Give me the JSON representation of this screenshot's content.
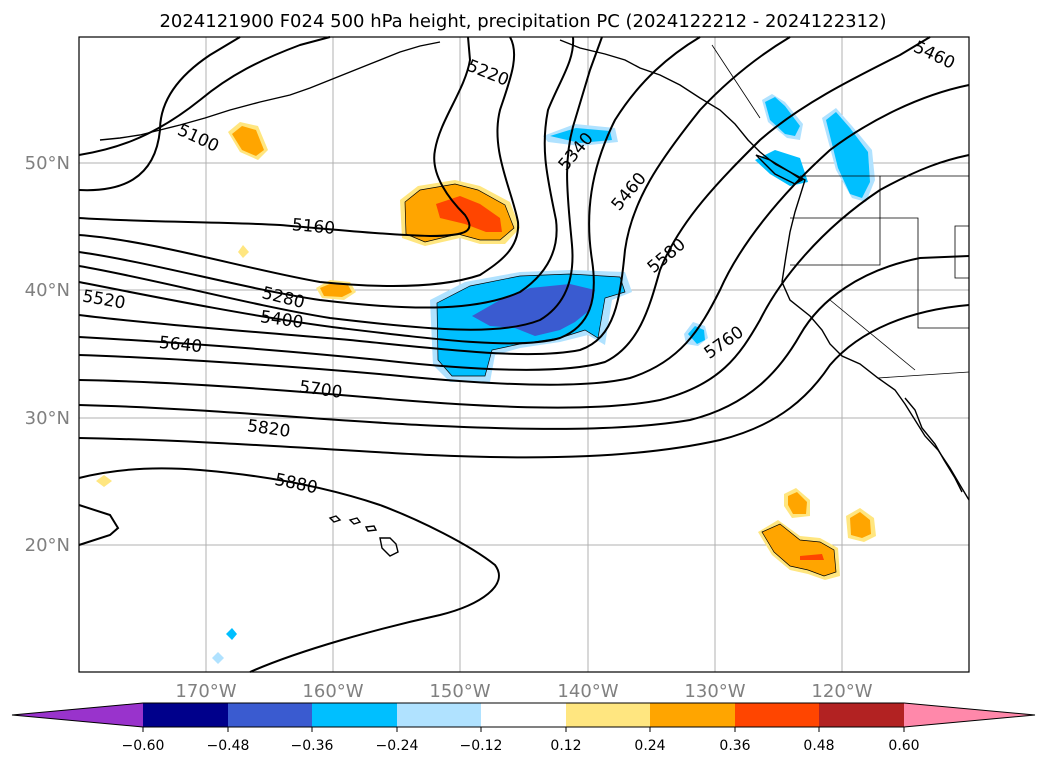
{
  "title": "2024121900 F024 500 hPa height, precipitation PC (2024122212 - 2024122312)",
  "lat_labels": [
    "50°N",
    "40°N",
    "30°N",
    "20°N"
  ],
  "lon_labels": [
    "170°W",
    "160°W",
    "150°W",
    "140°W",
    "130°W",
    "120°W"
  ],
  "contour_labels": [
    "5460",
    "5220",
    "5100",
    "5340",
    "5460",
    "5160",
    "5580",
    "5280",
    "5520",
    "5400",
    "5760",
    "5640",
    "5700",
    "5820",
    "5880"
  ],
  "colorbar": {
    "ticks": [
      "−0.60",
      "−0.48",
      "−0.36",
      "−0.24",
      "−0.12",
      "0.12",
      "0.24",
      "0.36",
      "0.48",
      "0.60"
    ],
    "colors": [
      "#9933cc",
      "#00008b",
      "#3a5bd0",
      "#00bfff",
      "#b0e2ff",
      "#ffffff",
      "#ffe680",
      "#ffa500",
      "#ff4500",
      "#b22222",
      "#ff88aa"
    ]
  }
}
